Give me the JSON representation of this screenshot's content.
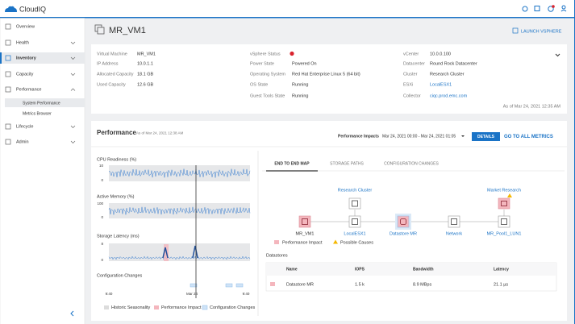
{
  "app": {
    "name": "CloudIQ"
  },
  "nav": {
    "items": [
      "Overview",
      "Health",
      "Inventory",
      "Capacity",
      "Performance",
      "Lifecycle",
      "Admin"
    ],
    "sub_items": [
      "System Performance",
      "Metrics Browser"
    ]
  },
  "header": {
    "title": "MR_VM1",
    "action": "LAUNCH VSPHERE"
  },
  "details": {
    "columns": [
      [
        {
          "label": "Virtual Machine",
          "value": "MR_VM1"
        },
        {
          "label": "IP Address",
          "value": "10.0.1.1"
        },
        {
          "label": "Allocated Capacity",
          "value": "18.1 GB"
        },
        {
          "label": "Used Capacity",
          "value": "12.6 GB"
        }
      ],
      [
        {
          "label": "vSphere Status"
        },
        {
          "label": "Power State",
          "value": "Powered On"
        },
        {
          "label": "Operating System",
          "value": "Red Hat Enterprise Linux 5 (64 bit)"
        },
        {
          "label": "OS State",
          "value": "Running"
        },
        {
          "label": "Guest Tools State",
          "value": "Running"
        }
      ],
      [
        {
          "label": "vCenter",
          "value": "10.0.0.100"
        },
        {
          "label": "Datacenter",
          "value": "Round Rock Datacenter"
        },
        {
          "label": "Cluster",
          "value": "Research Cluster"
        },
        {
          "label": "ESXi",
          "value": "LocalESX1"
        },
        {
          "label": "Collector",
          "value": "ciqc.prod.emc.com"
        }
      ]
    ],
    "as_of": "As of Mar 24, 2021 12:35 AM"
  },
  "performance": {
    "title": "Performance",
    "as_of": "As of Mar 24, 2021 12:38 AM",
    "impacts_label": "Performance Impacts",
    "range": "Mar 24, 2021 00:00 - Mar 24, 2021 01:05",
    "details_button": "DETAILS",
    "all_metrics": "GO TO ALL METRICS",
    "charts": [
      {
        "title": "CPU Readiness (%)",
        "yticks": [
          10,
          0
        ]
      },
      {
        "title": "Active Memory (%)",
        "yticks": [
          100,
          0
        ]
      },
      {
        "title": "Storage Latency (ms)",
        "yticks": [
          8,
          0
        ]
      },
      {
        "title": "Configuration Changes"
      }
    ],
    "time_labels": [
      "9:40",
      "Mar 24",
      "9:40"
    ],
    "legend": [
      "Historic Seasonality",
      "Performance Impact",
      "Configuration Changes"
    ],
    "tabs": [
      "END TO END MAP",
      "STORAGE PATHS",
      "CONFIGURATION CHANGES"
    ],
    "map": {
      "groups": [
        "Research Cluster",
        "Market Research"
      ],
      "nodes": [
        "MR_VM1",
        "LocalESX1",
        "Datastore MR",
        "Network",
        "MR_Pool1_LUN1"
      ],
      "legend": [
        "Performance Impact",
        "Possible Causes"
      ]
    },
    "datastores": {
      "title": "Datastores",
      "columns": [
        "Name",
        "IOPS",
        "Bandwidth",
        "Latency"
      ],
      "rows": [
        [
          "Datastore MR",
          "1.5 k",
          "8.9 MBps",
          "21.1 µs"
        ]
      ]
    }
  }
}
